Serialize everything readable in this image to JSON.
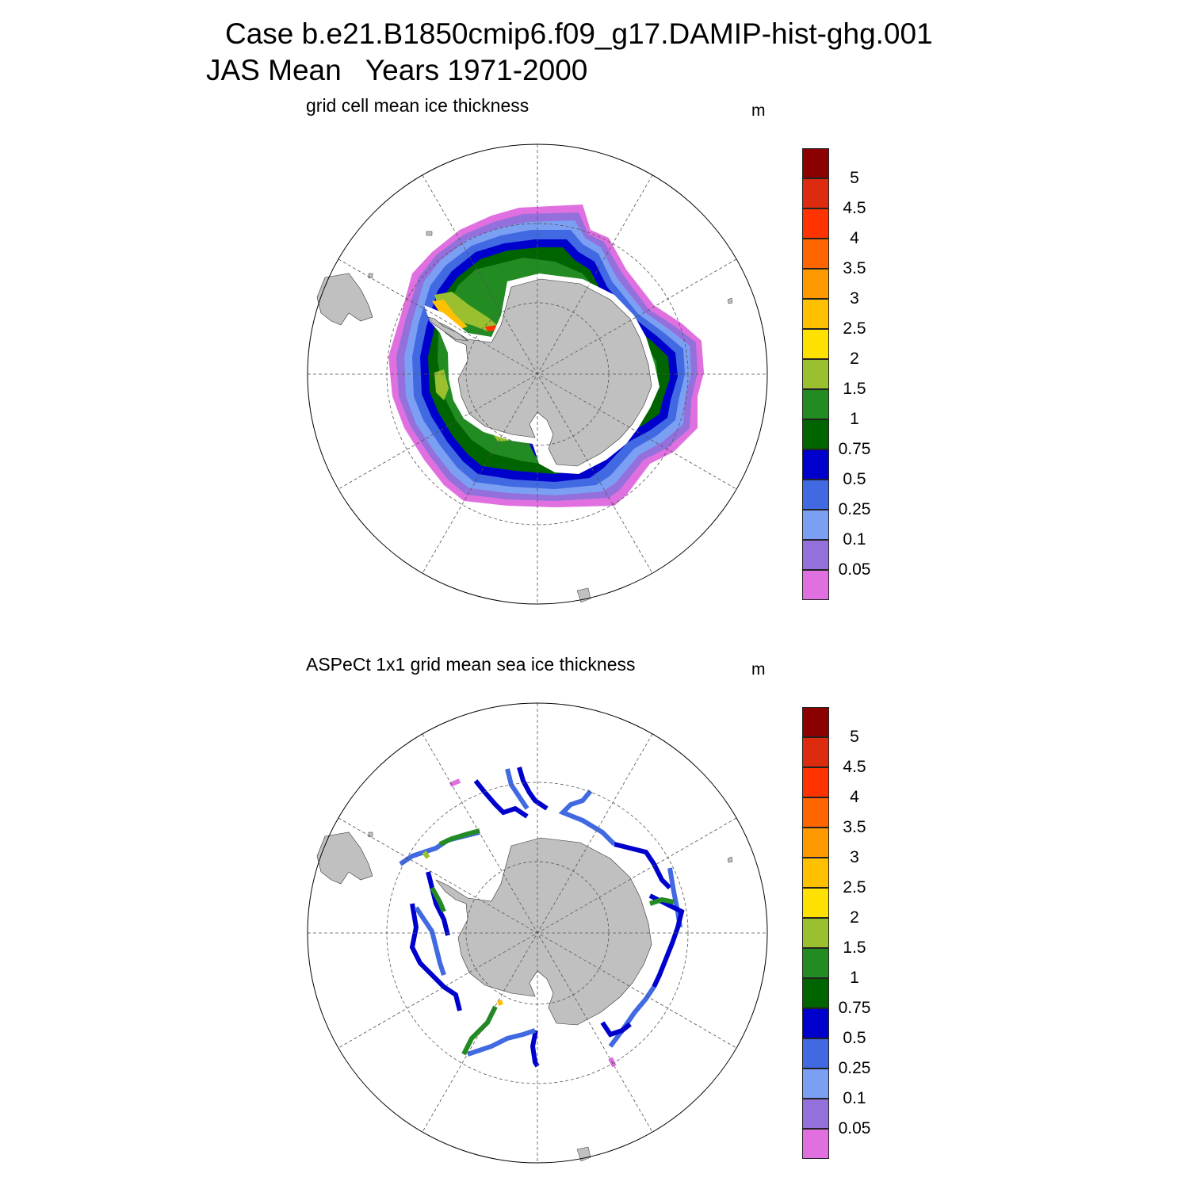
{
  "title": {
    "line1": "Case b.e21.B1850cmip6.f09_g17.DAMIP-hist-ghg.001",
    "line2": "JAS Mean   Years 1971-2000"
  },
  "panels": [
    {
      "subtitle": "grid cell mean ice thickness",
      "units": "m",
      "type": "model-field"
    },
    {
      "subtitle": "ASPeCt 1x1 grid mean sea ice thickness",
      "units": "m",
      "type": "ship-tracks"
    }
  ],
  "colorbar": {
    "labels": [
      "5",
      "4.5",
      "4",
      "3.5",
      "3",
      "2.5",
      "2",
      "1.5",
      "1",
      "0.75",
      "0.5",
      "0.25",
      "0.1",
      "0.05"
    ],
    "colors": [
      "#8b0000",
      "#dd2b0f",
      "#ff3300",
      "#ff6600",
      "#ff9900",
      "#ffc000",
      "#ffe100",
      "#9ac030",
      "#228b22",
      "#006400",
      "#0000cd",
      "#4169e1",
      "#7b9ff2",
      "#9370db",
      "#e070e0"
    ]
  },
  "map_colors": {
    "land": "#c0c0c0",
    "ocean": "#ffffff",
    "grid": "#555555"
  }
}
